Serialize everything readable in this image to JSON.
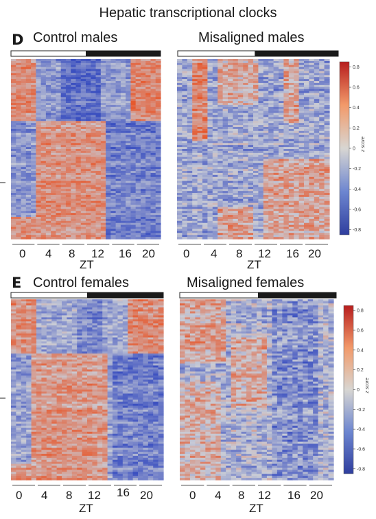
{
  "figure_title": "Hepatic transcriptional clocks",
  "panels": {
    "D": {
      "letter": "D"
    },
    "E": {
      "letter": "E"
    }
  },
  "colors": {
    "low": "#3a4fc0",
    "mid": "#c9ccd6",
    "high": "#e7562a",
    "light_bar": "#ffffff",
    "dark_bar": "#1a1a1a"
  },
  "chart_data": [
    {
      "type": "heatmap",
      "title": "Control males",
      "xlabel": "ZT",
      "ylabel": "",
      "x_ticks": [
        "0",
        "4",
        "8",
        "12",
        "16",
        "20"
      ],
      "light_dark_bar": {
        "light_from_zt": 0,
        "light_to_zt": 12,
        "dark_from_zt": 12,
        "dark_to_zt": 24
      },
      "colorbar": {
        "label": "z score",
        "ticks": [
          0.8,
          0.6,
          0.4,
          0.2,
          0,
          -0.2,
          -0.4,
          -0.6,
          -0.8
        ],
        "range": [
          -0.85,
          0.85
        ]
      },
      "pattern": "two clusters: top peaks ZT0-2 and ZT20, bottom peaks ZT4-12"
    },
    {
      "type": "heatmap",
      "title": "Misaligned males",
      "xlabel": "ZT",
      "ylabel": "",
      "x_ticks": [
        "0",
        "4",
        "8",
        "12",
        "16",
        "20"
      ],
      "light_dark_bar": {
        "light_from_zt": 0,
        "light_to_zt": 12,
        "dark_from_zt": 12,
        "dark_to_zt": 24
      },
      "colorbar": {
        "label": "z score",
        "ticks": [
          0.8,
          0.6,
          0.4,
          0.2,
          0,
          -0.2,
          -0.4,
          -0.6,
          -0.8
        ],
        "range": [
          -0.85,
          0.85
        ]
      },
      "pattern": "weak, fragmented rhythm"
    },
    {
      "type": "heatmap",
      "title": "Control females",
      "xlabel": "ZT",
      "ylabel": "",
      "x_ticks": [
        "0",
        "4",
        "8",
        "12",
        "16",
        "20"
      ],
      "light_dark_bar": {
        "light_from_zt": 0,
        "light_to_zt": 12,
        "dark_from_zt": 12,
        "dark_to_zt": 24
      },
      "colorbar": null,
      "pattern": "two clusters: top peaks ZT0 and ZT20, bottom peaks ZT4-12"
    },
    {
      "type": "heatmap",
      "title": "Misaligned females",
      "xlabel": "ZT",
      "ylabel": "",
      "x_ticks": [
        "0",
        "4",
        "8",
        "12",
        "16",
        "20"
      ],
      "light_dark_bar": {
        "light_from_zt": 0,
        "light_to_zt": 12,
        "dark_from_zt": 12,
        "dark_to_zt": 24
      },
      "colorbar": {
        "label": "z score",
        "ticks": [
          0.8,
          0.6,
          0.4,
          0.2,
          0,
          -0.2,
          -0.4,
          -0.6,
          -0.8
        ],
        "range": [
          -0.85,
          0.85
        ]
      },
      "pattern": "weak, fragmented rhythm"
    }
  ]
}
